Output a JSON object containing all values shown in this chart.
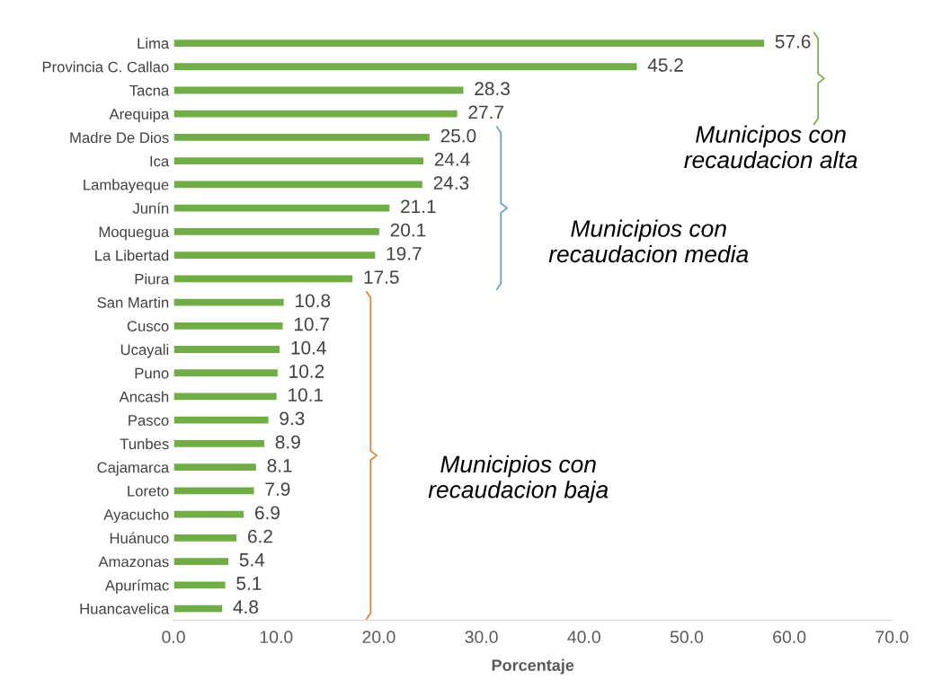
{
  "chart_data": {
    "type": "bar",
    "orientation": "horizontal",
    "xlabel": "Porcentaje",
    "categories": [
      "Lima",
      "Provincia C. Callao",
      "Tacna",
      "Arequipa",
      "Madre De Dios",
      "Ica",
      "Lambayeque",
      "Junín",
      "Moquegua",
      "La Libertad",
      "Piura",
      "San Martin",
      "Cusco",
      "Ucayali",
      "Puno",
      "Ancash",
      "Pasco",
      "Tunbes",
      "Cajamarca",
      "Loreto",
      "Ayacucho",
      "Huánuco",
      "Amazonas",
      "Apurímac",
      "Huancavelica"
    ],
    "values": [
      57.6,
      45.2,
      28.3,
      27.7,
      25.0,
      24.4,
      24.3,
      21.1,
      20.1,
      19.7,
      17.5,
      10.8,
      10.7,
      10.4,
      10.2,
      10.1,
      9.3,
      8.9,
      8.1,
      7.9,
      6.9,
      6.2,
      5.4,
      5.1,
      4.8
    ],
    "value_labels": [
      "57.6",
      "45.2",
      "28.3",
      "27.7",
      "25.0",
      "24.4",
      "24.3",
      "21.1",
      "20.1",
      "19.7",
      "17.5",
      "10.8",
      "10.7",
      "10.4",
      "10.2",
      "10.1",
      "9.3",
      "8.9",
      "8.1",
      "7.9",
      "6.9",
      "6.2",
      "5.4",
      "5.1",
      "4.8"
    ],
    "color": "#70ad47",
    "xlim": [
      0,
      70
    ],
    "xticks": [
      {
        "value": 0,
        "label": "0.0"
      },
      {
        "value": 10,
        "label": "10.0"
      },
      {
        "value": 20,
        "label": "20.0"
      },
      {
        "value": 30,
        "label": "30.0"
      },
      {
        "value": 40,
        "label": "40.0"
      },
      {
        "value": 50,
        "label": "50.0"
      },
      {
        "value": 60,
        "label": "60.0"
      },
      {
        "value": 70,
        "label": "70.0"
      }
    ],
    "grid": false,
    "legend": false,
    "annotations": [
      "Municipos con\nrecaudacion alta",
      "Municipios con\nrecaudacion media",
      "Municipios con\nrecaudacion baja"
    ]
  }
}
